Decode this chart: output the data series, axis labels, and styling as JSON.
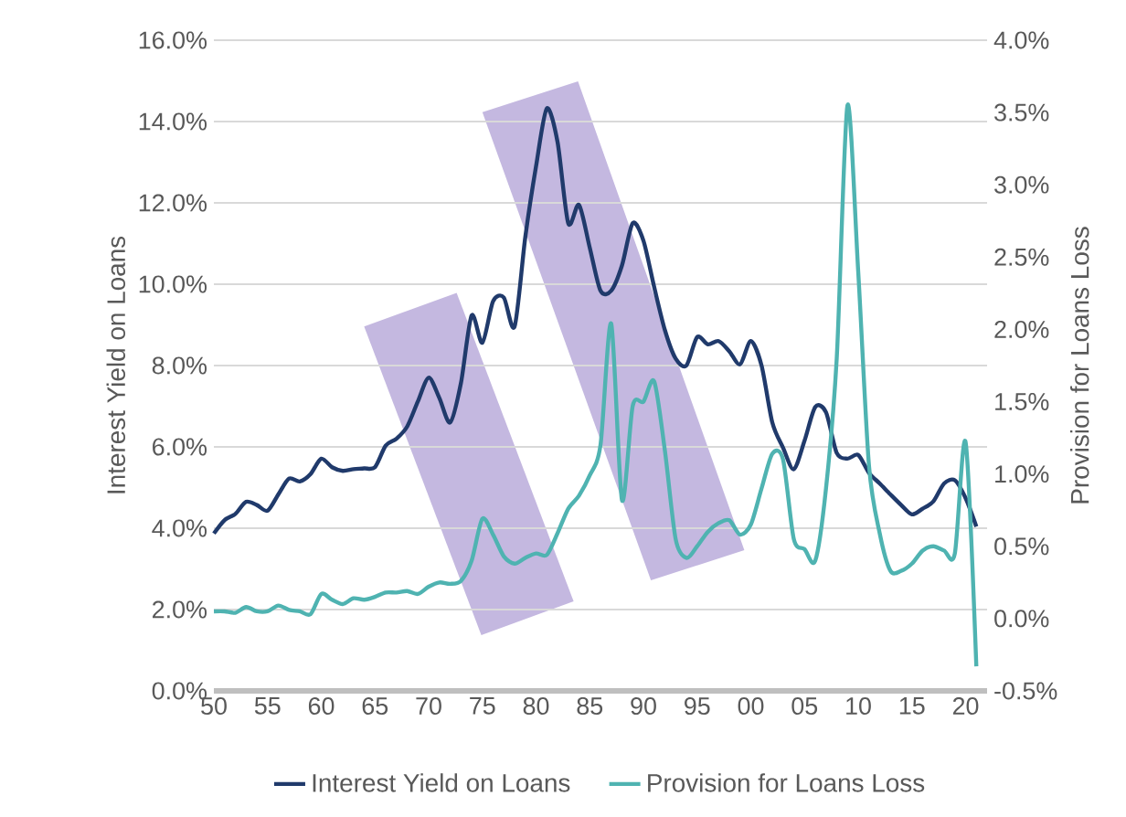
{
  "chart_data": {
    "type": "line",
    "ylabel": "Interest Yield on Loans",
    "y2label": "Provision for Loans Loss",
    "x": [
      1950,
      1951,
      1952,
      1953,
      1954,
      1955,
      1956,
      1957,
      1958,
      1959,
      1960,
      1961,
      1962,
      1963,
      1964,
      1965,
      1966,
      1967,
      1968,
      1969,
      1970,
      1971,
      1972,
      1973,
      1974,
      1975,
      1976,
      1977,
      1978,
      1979,
      1980,
      1981,
      1982,
      1983,
      1984,
      1985,
      1986,
      1987,
      1988,
      1989,
      1990,
      1991,
      1992,
      1993,
      1994,
      1995,
      1996,
      1997,
      1998,
      1999,
      2000,
      2001,
      2002,
      2003,
      2004,
      2005,
      2006,
      2007,
      2008,
      2009,
      2010,
      2011,
      2012,
      2013,
      2014,
      2015,
      2016,
      2017,
      2018,
      2019,
      2020,
      2021
    ],
    "xlim": [
      1950,
      2022
    ],
    "xticks": [
      {
        "value": 1950,
        "label": "50"
      },
      {
        "value": 1955,
        "label": "55"
      },
      {
        "value": 1960,
        "label": "60"
      },
      {
        "value": 1965,
        "label": "65"
      },
      {
        "value": 1970,
        "label": "70"
      },
      {
        "value": 1975,
        "label": "75"
      },
      {
        "value": 1980,
        "label": "80"
      },
      {
        "value": 1985,
        "label": "85"
      },
      {
        "value": 1990,
        "label": "90"
      },
      {
        "value": 1995,
        "label": "95"
      },
      {
        "value": 2000,
        "label": "00"
      },
      {
        "value": 2005,
        "label": "05"
      },
      {
        "value": 2010,
        "label": "10"
      },
      {
        "value": 2015,
        "label": "15"
      },
      {
        "value": 2020,
        "label": "20"
      }
    ],
    "ylim": [
      0,
      16
    ],
    "yticks": [
      {
        "value": 0,
        "label": "0.0%"
      },
      {
        "value": 2,
        "label": "2.0%"
      },
      {
        "value": 4,
        "label": "4.0%"
      },
      {
        "value": 6,
        "label": "6.0%"
      },
      {
        "value": 8,
        "label": "8.0%"
      },
      {
        "value": 10,
        "label": "10.0%"
      },
      {
        "value": 12,
        "label": "12.0%"
      },
      {
        "value": 14,
        "label": "14.0%"
      },
      {
        "value": 16,
        "label": "16.0%"
      }
    ],
    "y2lim": [
      -0.5,
      4
    ],
    "y2ticks": [
      {
        "value": -0.5,
        "label": "-0.5%"
      },
      {
        "value": 0,
        "label": "0.0%"
      },
      {
        "value": 0.5,
        "label": "0.5%"
      },
      {
        "value": 1,
        "label": "1.0%"
      },
      {
        "value": 1.5,
        "label": "1.5%"
      },
      {
        "value": 2,
        "label": "2.0%"
      },
      {
        "value": 2.5,
        "label": "2.5%"
      },
      {
        "value": 3,
        "label": "3.0%"
      },
      {
        "value": 3.5,
        "label": "3.5%"
      },
      {
        "value": 4,
        "label": "4.0%"
      }
    ],
    "grid": "y",
    "legend": "bottom",
    "series": [
      {
        "name": "Interest Yield on Loans",
        "color": "#203a6b",
        "values": [
          3.87,
          4.2,
          4.35,
          4.65,
          4.57,
          4.43,
          4.83,
          5.22,
          5.15,
          5.33,
          5.71,
          5.5,
          5.41,
          5.45,
          5.47,
          5.5,
          6.03,
          6.2,
          6.5,
          7.12,
          7.7,
          7.2,
          6.6,
          7.56,
          9.23,
          8.56,
          9.58,
          9.67,
          8.96,
          11.16,
          12.9,
          14.32,
          13.5,
          11.5,
          11.95,
          10.9,
          9.84,
          9.84,
          10.46,
          11.5,
          11.07,
          9.93,
          8.87,
          8.17,
          8.0,
          8.7,
          8.52,
          8.6,
          8.35,
          8.03,
          8.6,
          8.0,
          6.6,
          5.98,
          5.45,
          6.15,
          6.98,
          6.85,
          5.85,
          5.71,
          5.8,
          5.36,
          5.1,
          4.83,
          4.57,
          4.34,
          4.48,
          4.66,
          5.1,
          5.18,
          4.74,
          4.04
        ]
      },
      {
        "name": "Provision for Loans Loss",
        "color": "#4fb3b1",
        "axis": "y2",
        "values": [
          0.05,
          0.05,
          0.04,
          0.08,
          0.05,
          0.05,
          0.09,
          0.06,
          0.05,
          0.03,
          0.17,
          0.13,
          0.1,
          0.14,
          0.13,
          0.15,
          0.18,
          0.18,
          0.19,
          0.17,
          0.22,
          0.25,
          0.24,
          0.26,
          0.4,
          0.69,
          0.58,
          0.43,
          0.38,
          0.42,
          0.45,
          0.44,
          0.59,
          0.76,
          0.85,
          0.99,
          1.2,
          2.04,
          0.82,
          1.47,
          1.5,
          1.64,
          1.16,
          0.55,
          0.42,
          0.5,
          0.6,
          0.66,
          0.68,
          0.58,
          0.65,
          0.9,
          1.14,
          1.1,
          0.55,
          0.48,
          0.4,
          0.9,
          1.8,
          3.55,
          2.4,
          1.06,
          0.59,
          0.33,
          0.33,
          0.38,
          0.47,
          0.5,
          0.47,
          0.45,
          1.22,
          -0.33
        ]
      }
    ]
  }
}
